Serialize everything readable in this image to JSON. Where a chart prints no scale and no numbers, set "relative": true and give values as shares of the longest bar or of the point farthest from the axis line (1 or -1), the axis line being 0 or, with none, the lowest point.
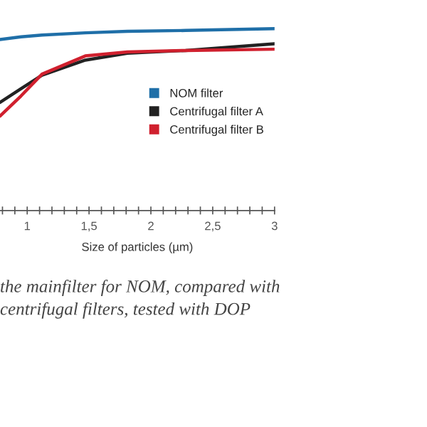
{
  "chart_data": {
    "type": "line",
    "relative": true,
    "xlabel": "Size of particles (µm)",
    "xlim": [
      0.78,
      3.0
    ],
    "xticks": [
      {
        "value": 0.8,
        "label": null
      },
      {
        "value": 0.9,
        "label": null
      },
      1,
      {
        "value": 1.1,
        "label": null
      },
      {
        "value": 1.2,
        "label": null
      },
      {
        "value": 1.3,
        "label": null
      },
      {
        "value": 1.4,
        "label": null
      },
      {
        "value": 1.5,
        "label": "1,5"
      },
      {
        "value": 1.6,
        "label": null
      },
      {
        "value": 1.7,
        "label": null
      },
      {
        "value": 1.8,
        "label": null
      },
      {
        "value": 1.9,
        "label": null
      },
      2,
      {
        "value": 2.1,
        "label": null
      },
      {
        "value": 2.2,
        "label": null
      },
      {
        "value": 2.3,
        "label": null
      },
      {
        "value": 2.4,
        "label": null
      },
      {
        "value": 2.5,
        "label": "2,5"
      },
      {
        "value": 2.6,
        "label": null
      },
      {
        "value": 2.7,
        "label": null
      },
      {
        "value": 2.8,
        "label": null
      },
      {
        "value": 2.9,
        "label": null
      },
      3
    ],
    "x": [
      0.78,
      0.95,
      1.12,
      1.47,
      1.81,
      2.28,
      3.0
    ],
    "series": [
      {
        "name": "NOM filter",
        "color": "#1f6fa8",
        "values": [
          0.94,
          0.955,
          0.965,
          0.977,
          0.985,
          0.99,
          1.0
        ]
      },
      {
        "name": "Centrifugal filter A",
        "color": "#222222",
        "values": [
          0.594,
          0.67,
          0.744,
          0.827,
          0.865,
          0.88,
          0.917
        ]
      },
      {
        "name": "Centrifugal filter B",
        "color": "#d0202e",
        "values": [
          0.519,
          0.63,
          0.75,
          0.85,
          0.872,
          0.88,
          0.887
        ]
      }
    ],
    "legend": "center right",
    "grid": false,
    "marker": "none",
    "line_style": "solid",
    "annotations": [
      "the mainfilter for NOM, compared with\ncentrifugal filters, tested with DOP"
    ]
  }
}
